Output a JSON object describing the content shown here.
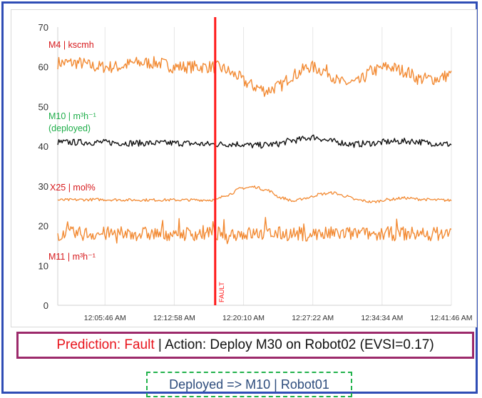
{
  "chart_data": {
    "type": "line",
    "ylim": [
      0,
      70
    ],
    "yticks": [
      0,
      10,
      20,
      30,
      40,
      50,
      60,
      70
    ],
    "xtick_labels": [
      "12:05:46 AM",
      "12:12:58 AM",
      "12:20:10 AM",
      "12:27:22 AM",
      "12:34:34 AM",
      "12:41:46 AM"
    ],
    "fault_marker": {
      "label": "FAULT",
      "x_fraction": 0.4,
      "color": "#ff1a1a"
    },
    "series": [
      {
        "name": "M4 | kscmh",
        "label_color": "#d7191c",
        "line_color": "#f28a33",
        "x": [
          0,
          0.05,
          0.1,
          0.15,
          0.2,
          0.25,
          0.3,
          0.35,
          0.4,
          0.42,
          0.45,
          0.48,
          0.5,
          0.53,
          0.56,
          0.6,
          0.64,
          0.68,
          0.72,
          0.76,
          0.8,
          0.84,
          0.88,
          0.92,
          0.96,
          1.0
        ],
        "values": [
          61,
          61,
          60,
          60,
          61,
          61,
          60,
          60,
          60,
          59.5,
          58,
          56,
          55,
          54,
          55,
          58,
          60,
          59,
          56,
          56,
          59,
          60,
          59,
          57,
          57,
          58
        ]
      },
      {
        "name": "M10  | m³h⁻¹ (deployed)",
        "label_color": "#1fae4a",
        "line_color": "#111111",
        "x": [
          0,
          0.1,
          0.2,
          0.3,
          0.4,
          0.45,
          0.5,
          0.55,
          0.6,
          0.65,
          0.7,
          0.75,
          0.8,
          0.85,
          0.9,
          0.95,
          1.0
        ],
        "values": [
          41,
          41,
          40.8,
          40.8,
          40.5,
          40.6,
          40.2,
          40.5,
          41.5,
          42.3,
          41.2,
          40.5,
          40.8,
          41.2,
          41.3,
          40.8,
          40.5
        ]
      },
      {
        "name": "X25 | mol%",
        "label_color": "#d7191c",
        "line_color": "#f28a33",
        "x": [
          0,
          0.1,
          0.2,
          0.3,
          0.4,
          0.43,
          0.47,
          0.5,
          0.53,
          0.57,
          0.6,
          0.63,
          0.67,
          0.7,
          0.73,
          0.76,
          0.8,
          0.84,
          0.88,
          0.92,
          0.96,
          1.0
        ],
        "values": [
          26.5,
          26.6,
          26.5,
          26.5,
          26.5,
          27.8,
          29.5,
          29.8,
          29,
          27,
          26.2,
          27,
          28,
          28.3,
          27.5,
          26.5,
          26,
          26.6,
          27,
          26.7,
          26.5,
          26.4
        ]
      },
      {
        "name": "M11 | m³h⁻¹",
        "label_color": "#d7191c",
        "line_color": "#f28a33",
        "x": [
          0,
          0.25,
          0.5,
          0.75,
          1.0
        ],
        "values": [
          18,
          18,
          18,
          18,
          18
        ]
      }
    ]
  },
  "prediction_box": {
    "prefix": "Prediction: Fault",
    "rest": " | Action: Deploy M30 on Robot02 (EVSI=0.17)"
  },
  "deployed_box": {
    "text": "Deployed => M10 | Robot01"
  },
  "colors": {
    "frame_border": "#2f4db5",
    "prediction_border": "#9c2a6b",
    "deployed_border": "#22b24c"
  }
}
